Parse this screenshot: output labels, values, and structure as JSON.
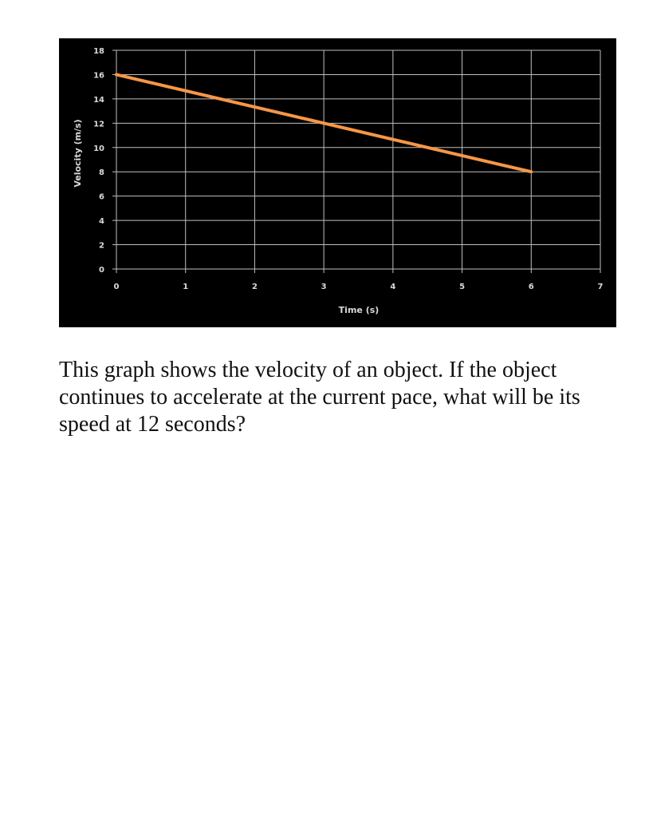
{
  "chart_data": {
    "type": "line",
    "xlabel": "Time (s)",
    "ylabel": "Velocity (m/s)",
    "xlim": [
      0,
      7
    ],
    "ylim": [
      0,
      18
    ],
    "x_ticks": [
      0,
      1,
      2,
      3,
      4,
      5,
      6,
      7
    ],
    "y_ticks": [
      0,
      2,
      4,
      6,
      8,
      10,
      12,
      14,
      16,
      18
    ],
    "grid": true,
    "background_color": "#000000",
    "grid_color": "#bfbfbf",
    "text_color": "#d9d9d9",
    "series": [
      {
        "color": "#f79646",
        "x": [
          0,
          6
        ],
        "y": [
          16,
          8
        ]
      }
    ]
  },
  "question": {
    "text": "This graph shows the velocity of an object. If the object continues to accelerate at the current pace, what will be its speed at 12 seconds?"
  }
}
